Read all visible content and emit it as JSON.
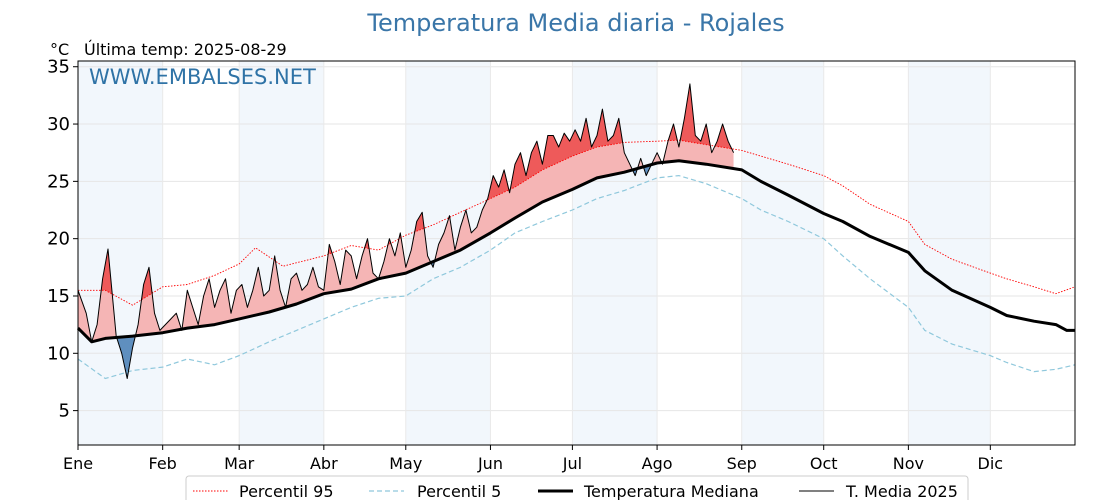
{
  "chart_data": {
    "type": "line",
    "title": "Temperatura Media diaria - Rojales",
    "unit_label": "°C",
    "last_temp_label": "Última temp: 2025-08-29",
    "watermark": "WWW.EMBALSES.NET",
    "ylim": [
      2,
      35.5
    ],
    "xlim": [
      0,
      365
    ],
    "yticks": [
      5,
      10,
      15,
      20,
      25,
      30,
      35
    ],
    "month_ticks": [
      {
        "label": "Ene",
        "day": 0
      },
      {
        "label": "Feb",
        "day": 31
      },
      {
        "label": "Mar",
        "day": 59
      },
      {
        "label": "Abr",
        "day": 90
      },
      {
        "label": "May",
        "day": 120
      },
      {
        "label": "Jun",
        "day": 151
      },
      {
        "label": "Jul",
        "day": 181
      },
      {
        "label": "Ago",
        "day": 212
      },
      {
        "label": "Sep",
        "day": 243
      },
      {
        "label": "Oct",
        "day": 273
      },
      {
        "label": "Nov",
        "day": 304
      },
      {
        "label": "Dic",
        "day": 334
      }
    ],
    "grid": true,
    "legend_position": "bottom",
    "series": [
      {
        "name": "Percentil 95",
        "color": "#ff0000",
        "style": "dotted",
        "x": [
          0,
          10,
          20,
          31,
          40,
          50,
          59,
          65,
          75,
          90,
          100,
          110,
          120,
          130,
          140,
          151,
          160,
          170,
          181,
          190,
          200,
          212,
          220,
          230,
          243,
          250,
          260,
          273,
          280,
          290,
          304,
          310,
          320,
          334,
          340,
          350,
          358,
          365
        ],
        "y": [
          15.5,
          15.5,
          14.2,
          15.8,
          16.0,
          16.8,
          17.8,
          19.2,
          17.6,
          18.5,
          19.4,
          19.0,
          20.3,
          21.2,
          22.3,
          23.5,
          24.5,
          26.0,
          27.2,
          28.0,
          28.4,
          28.5,
          28.6,
          28.2,
          27.7,
          27.2,
          26.5,
          25.5,
          24.6,
          23.0,
          21.5,
          19.5,
          18.2,
          17.0,
          16.5,
          15.8,
          15.2,
          15.8
        ]
      },
      {
        "name": "Percentil 5",
        "color": "#8fc8dc",
        "style": "dashed",
        "x": [
          0,
          10,
          20,
          31,
          40,
          50,
          59,
          70,
          80,
          90,
          100,
          110,
          120,
          130,
          140,
          151,
          160,
          170,
          181,
          190,
          200,
          212,
          220,
          230,
          243,
          250,
          260,
          273,
          280,
          290,
          304,
          310,
          320,
          334,
          340,
          350,
          358,
          365
        ],
        "y": [
          9.5,
          7.8,
          8.5,
          8.8,
          9.5,
          9.0,
          9.8,
          11.0,
          12.0,
          13.0,
          14.0,
          14.8,
          15.0,
          16.5,
          17.5,
          19.0,
          20.5,
          21.5,
          22.5,
          23.5,
          24.2,
          25.3,
          25.5,
          24.8,
          23.5,
          22.5,
          21.5,
          20.0,
          18.5,
          16.5,
          14.0,
          12.0,
          10.8,
          9.8,
          9.2,
          8.4,
          8.6,
          9.0
        ]
      },
      {
        "name": "Temperatura Mediana",
        "color": "#000000",
        "style": "solid-bold",
        "x": [
          0,
          5,
          10,
          20,
          31,
          40,
          50,
          59,
          70,
          80,
          90,
          100,
          110,
          120,
          130,
          140,
          151,
          160,
          170,
          181,
          190,
          200,
          212,
          220,
          230,
          243,
          250,
          260,
          273,
          280,
          290,
          304,
          310,
          320,
          334,
          340,
          350,
          358,
          362,
          365
        ],
        "y": [
          12.2,
          11.0,
          11.3,
          11.5,
          11.8,
          12.2,
          12.5,
          13.0,
          13.6,
          14.3,
          15.2,
          15.6,
          16.5,
          17.0,
          18.0,
          19.0,
          20.5,
          21.8,
          23.2,
          24.3,
          25.3,
          25.8,
          26.6,
          26.8,
          26.5,
          26.0,
          25.0,
          23.8,
          22.2,
          21.5,
          20.2,
          18.8,
          17.2,
          15.5,
          14.0,
          13.3,
          12.8,
          12.5,
          12.0,
          12.0
        ]
      },
      {
        "name": "T. Media 2025",
        "color": "#000000",
        "style": "solid-thin",
        "x": [
          0,
          3,
          5,
          7,
          9,
          11,
          13,
          14,
          16,
          18,
          20,
          22,
          24,
          26,
          28,
          30,
          32,
          34,
          36,
          38,
          40,
          42,
          44,
          46,
          48,
          50,
          52,
          54,
          56,
          58,
          60,
          62,
          64,
          66,
          68,
          70,
          72,
          74,
          76,
          78,
          80,
          82,
          84,
          86,
          88,
          90,
          92,
          94,
          96,
          98,
          100,
          102,
          104,
          106,
          108,
          110,
          112,
          114,
          116,
          118,
          120,
          122,
          124,
          126,
          128,
          130,
          132,
          134,
          136,
          138,
          140,
          142,
          144,
          146,
          148,
          150,
          152,
          154,
          156,
          158,
          160,
          162,
          164,
          166,
          168,
          170,
          172,
          174,
          176,
          178,
          180,
          182,
          184,
          186,
          188,
          190,
          192,
          194,
          196,
          198,
          200,
          202,
          204,
          206,
          208,
          210,
          212,
          214,
          216,
          218,
          220,
          222,
          224,
          226,
          228,
          230,
          232,
          234,
          236,
          238,
          240
        ],
        "y": [
          15.5,
          13.5,
          11.0,
          12.5,
          16.5,
          19.1,
          14.0,
          11.5,
          10.0,
          7.8,
          10.5,
          12.5,
          16.0,
          17.5,
          13.5,
          12.0,
          12.5,
          13.0,
          13.5,
          12.0,
          15.5,
          14.0,
          12.5,
          15.0,
          16.5,
          14.0,
          15.5,
          16.5,
          13.5,
          15.5,
          16.0,
          14.0,
          15.5,
          17.5,
          15.0,
          15.5,
          18.5,
          15.5,
          14.0,
          16.5,
          17.0,
          15.5,
          16.0,
          17.5,
          15.8,
          15.5,
          19.5,
          18.0,
          16.0,
          19.0,
          18.5,
          16.5,
          18.5,
          20.0,
          17.0,
          16.5,
          18.0,
          20.0,
          18.5,
          20.5,
          17.5,
          19.0,
          21.5,
          22.3,
          18.5,
          17.5,
          19.5,
          20.5,
          22.0,
          19.0,
          21.0,
          22.5,
          20.5,
          21.0,
          22.5,
          23.5,
          25.5,
          24.5,
          26.0,
          24.0,
          26.5,
          27.5,
          25.5,
          27.5,
          28.5,
          26.5,
          29.0,
          29.0,
          28.0,
          29.2,
          28.5,
          29.5,
          28.5,
          30.5,
          28.0,
          29.0,
          31.3,
          28.5,
          29.0,
          30.5,
          27.5,
          26.5,
          25.5,
          27.0,
          25.5,
          26.5,
          27.5,
          26.5,
          28.5,
          30.0,
          28.0,
          30.5,
          33.5,
          29.0,
          28.5,
          30.0,
          27.5,
          28.5,
          30.0,
          28.5,
          27.5
        ]
      }
    ],
    "legend": [
      {
        "label": "Percentil 95"
      },
      {
        "label": "Percentil 5"
      },
      {
        "label": "Temperatura Mediana"
      },
      {
        "label": "T. Media 2025"
      }
    ]
  }
}
